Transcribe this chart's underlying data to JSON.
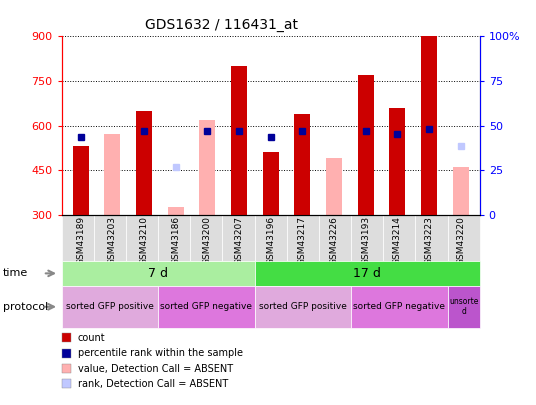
{
  "title": "GDS1632 / 116431_at",
  "samples": [
    "GSM43189",
    "GSM43203",
    "GSM43210",
    "GSM43186",
    "GSM43200",
    "GSM43207",
    "GSM43196",
    "GSM43217",
    "GSM43226",
    "GSM43193",
    "GSM43214",
    "GSM43223",
    "GSM43220"
  ],
  "count_values": [
    530,
    null,
    650,
    null,
    null,
    800,
    510,
    640,
    null,
    770,
    660,
    900,
    null
  ],
  "percentile_values": [
    560,
    null,
    580,
    null,
    580,
    580,
    560,
    580,
    null,
    580,
    570,
    590,
    null
  ],
  "absent_value_values": [
    null,
    570,
    null,
    325,
    620,
    null,
    null,
    null,
    490,
    null,
    null,
    null,
    460
  ],
  "absent_rank_values": [
    null,
    null,
    null,
    460,
    null,
    null,
    null,
    null,
    null,
    null,
    null,
    null,
    530
  ],
  "ylim_left": [
    300,
    900
  ],
  "ylim_right": [
    0,
    100
  ],
  "left_ticks": [
    300,
    450,
    600,
    750,
    900
  ],
  "right_ticks": [
    0,
    25,
    50,
    75,
    100
  ],
  "right_tick_labels": [
    "0",
    "25",
    "50",
    "75",
    "100%"
  ],
  "bar_color": "#cc0000",
  "percentile_color": "#000099",
  "absent_value_color": "#ffb0b0",
  "absent_rank_color": "#c0c8ff",
  "time_groups": [
    {
      "label": "7 d",
      "start": 0,
      "end": 6,
      "color": "#aaeea0"
    },
    {
      "label": "17 d",
      "start": 6,
      "end": 13,
      "color": "#44dd44"
    }
  ],
  "protocol_groups": [
    {
      "label": "sorted GFP positive",
      "start": 0,
      "end": 3,
      "color": "#e0aadd"
    },
    {
      "label": "sorted GFP negative",
      "start": 3,
      "end": 6,
      "color": "#dd77dd"
    },
    {
      "label": "sorted GFP positive",
      "start": 6,
      "end": 9,
      "color": "#e0aadd"
    },
    {
      "label": "sorted GFP negative",
      "start": 9,
      "end": 12,
      "color": "#dd77dd"
    },
    {
      "label": "unsorte\nd",
      "start": 12,
      "end": 13,
      "color": "#bb55cc"
    }
  ],
  "legend_items": [
    {
      "label": "count",
      "color": "#cc0000"
    },
    {
      "label": "percentile rank within the sample",
      "color": "#000099"
    },
    {
      "label": "value, Detection Call = ABSENT",
      "color": "#ffb0b0"
    },
    {
      "label": "rank, Detection Call = ABSENT",
      "color": "#c0c8ff"
    }
  ],
  "bar_width": 0.5
}
